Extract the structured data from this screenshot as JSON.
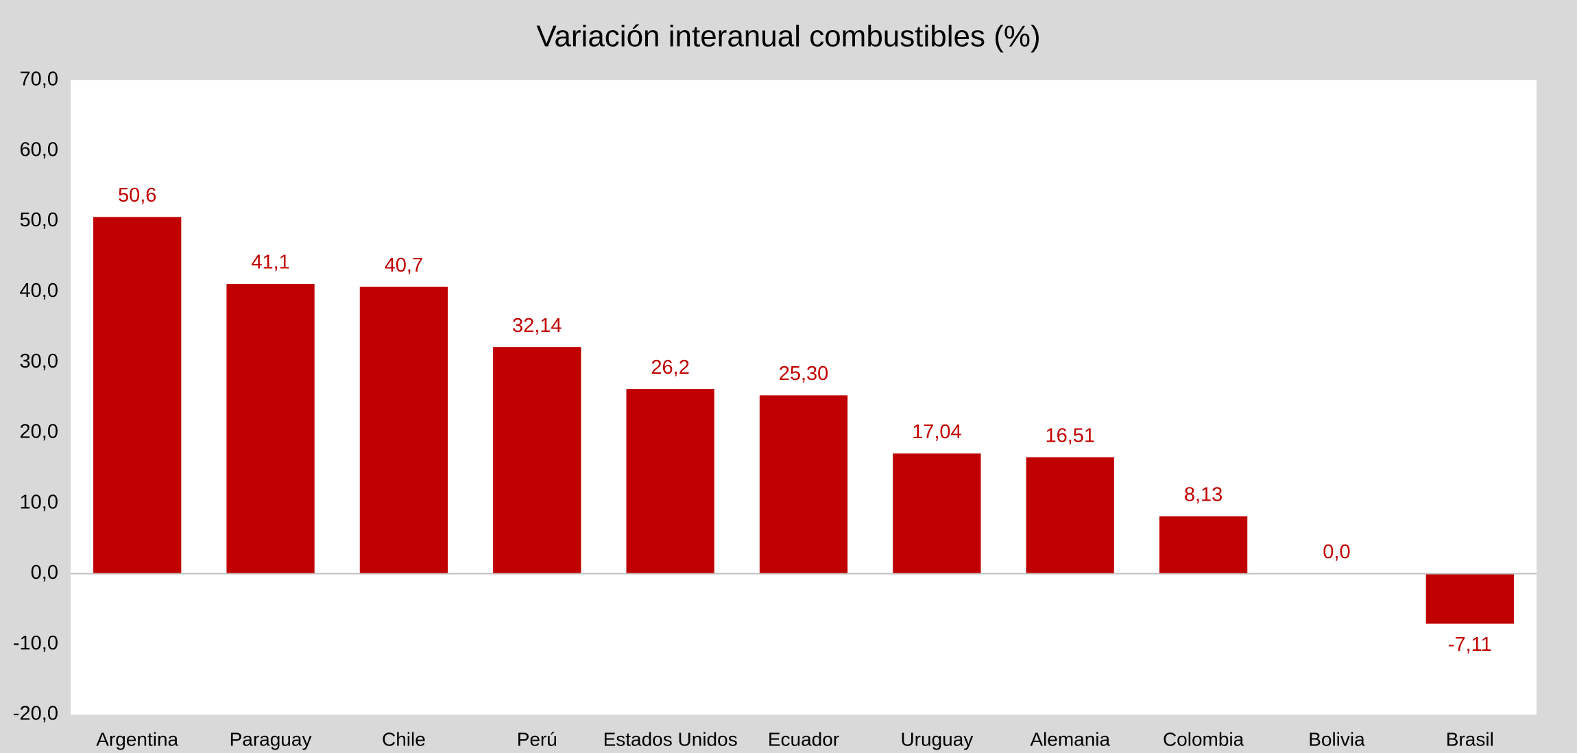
{
  "chart_data": {
    "type": "bar",
    "title": "Variación interanual combustibles (%)",
    "categories": [
      "Argentina",
      "Paraguay",
      "Chile",
      "Perú",
      "Estados Unidos",
      "Ecuador",
      "Uruguay",
      "Alemania",
      "Colombia",
      "Bolivia",
      "Brasil"
    ],
    "values": [
      50.6,
      41.1,
      40.7,
      32.14,
      26.2,
      25.3,
      17.04,
      16.51,
      8.13,
      0.0,
      -7.11
    ],
    "value_labels": [
      "50,6",
      "41,1",
      "40,7",
      "32,14",
      "26,2",
      "25,30",
      "17,04",
      "16,51",
      "8,13",
      "0,0",
      "-7,11"
    ],
    "color": "#c00000",
    "ylim": [
      -20,
      70
    ],
    "yticks": [
      {
        "value": -20,
        "label": "-20,0"
      },
      {
        "value": -10,
        "label": "-10,0"
      },
      {
        "value": 0,
        "label": "0,0"
      },
      {
        "value": 10,
        "label": "10,0"
      },
      {
        "value": 20,
        "label": "20,0"
      },
      {
        "value": 30,
        "label": "30,0"
      },
      {
        "value": 40,
        "label": "40,0"
      },
      {
        "value": 50,
        "label": "50,0"
      },
      {
        "value": 60,
        "label": "60,0"
      },
      {
        "value": 70,
        "label": "70,0"
      }
    ],
    "grid": false
  }
}
